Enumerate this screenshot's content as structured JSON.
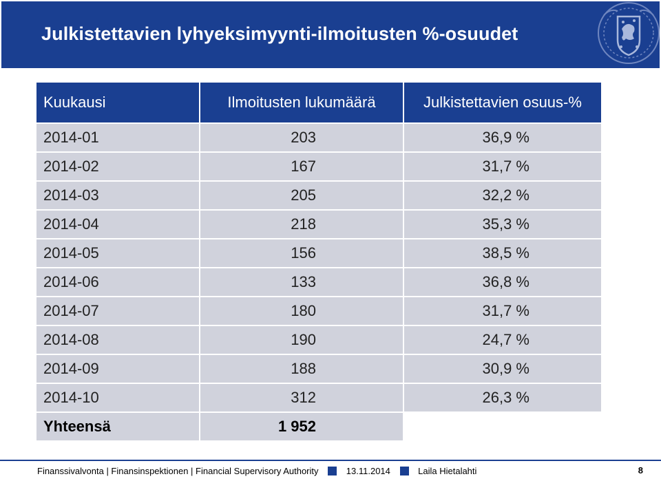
{
  "header": {
    "title": "Julkistettavien lyhyeksimyynti-ilmoitusten %-osuudet",
    "emblem_icon": "finnish-lion-coat-of-arms-icon",
    "background_color": "#1a3f91"
  },
  "table": {
    "columns": [
      "Kuukausi",
      "Ilmoitusten lukumäärä",
      "Julkistettavien osuus-%"
    ],
    "rows": [
      {
        "month": "2014-01",
        "count": "203",
        "share": "36,9 %"
      },
      {
        "month": "2014-02",
        "count": "167",
        "share": "31,7 %"
      },
      {
        "month": "2014-03",
        "count": "205",
        "share": "32,2 %"
      },
      {
        "month": "2014-04",
        "count": "218",
        "share": "35,3 %"
      },
      {
        "month": "2014-05",
        "count": "156",
        "share": "38,5 %"
      },
      {
        "month": "2014-06",
        "count": "133",
        "share": "36,8 %"
      },
      {
        "month": "2014-07",
        "count": "180",
        "share": "31,7 %"
      },
      {
        "month": "2014-08",
        "count": "190",
        "share": "24,7 %"
      },
      {
        "month": "2014-09",
        "count": "188",
        "share": "30,9 %"
      },
      {
        "month": "2014-10",
        "count": "312",
        "share": "26,3 %"
      }
    ],
    "total": {
      "label": "Yhteensä",
      "count": "1 952"
    }
  },
  "footer": {
    "organization": "Finanssivalvonta | Finansinspektionen | Financial Supervisory Authority",
    "date": "13.11.2014",
    "author": "Laila Hietalahti",
    "page_number": "8"
  }
}
